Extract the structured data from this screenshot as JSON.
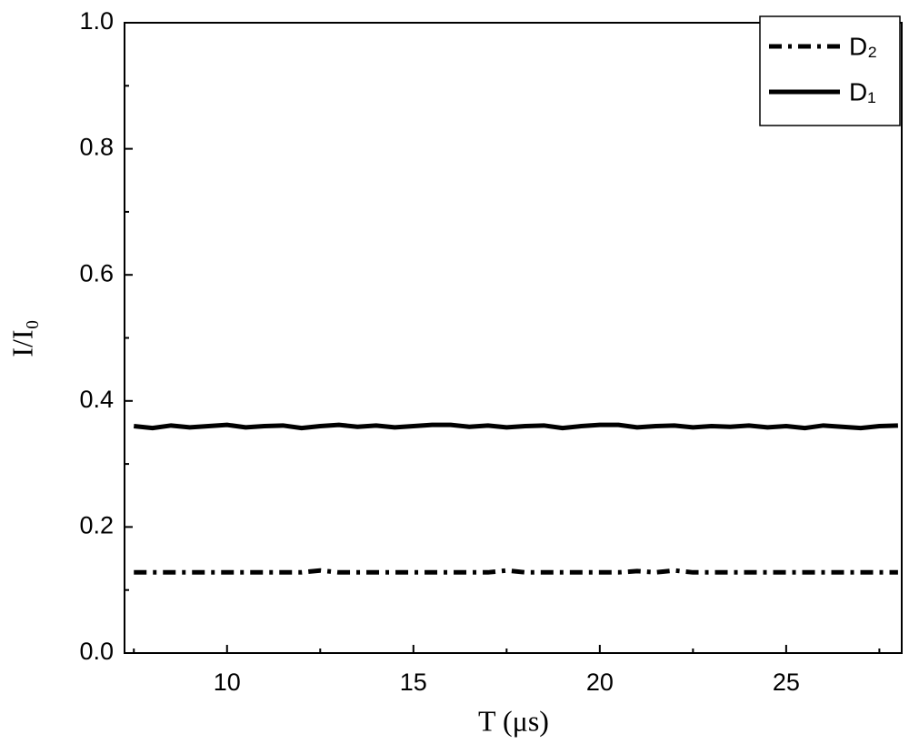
{
  "chart_data": {
    "type": "line",
    "xlabel": "T (μs)",
    "ylabel": "I/I₀",
    "x": [
      7.5,
      8,
      8.5,
      9,
      9.5,
      10,
      10.5,
      11,
      11.5,
      12,
      12.5,
      13,
      13.5,
      14,
      14.5,
      15,
      15.5,
      16,
      16.5,
      17,
      17.5,
      18,
      18.5,
      19,
      19.5,
      20,
      20.5,
      21,
      21.5,
      22,
      22.5,
      23,
      23.5,
      24,
      24.5,
      25,
      25.5,
      26,
      26.5,
      27,
      27.5,
      28
    ],
    "series": [
      {
        "name": "D₂",
        "color": "#000000",
        "style": "dashdot",
        "values": [
          0.128,
          0.128,
          0.128,
          0.128,
          0.128,
          0.128,
          0.128,
          0.128,
          0.128,
          0.128,
          0.131,
          0.128,
          0.128,
          0.128,
          0.128,
          0.128,
          0.128,
          0.128,
          0.128,
          0.128,
          0.131,
          0.128,
          0.128,
          0.128,
          0.128,
          0.128,
          0.128,
          0.13,
          0.128,
          0.131,
          0.128,
          0.128,
          0.128,
          0.128,
          0.128,
          0.128,
          0.128,
          0.128,
          0.128,
          0.128,
          0.128,
          0.128
        ]
      },
      {
        "name": "D₁",
        "color": "#000000",
        "style": "solid",
        "values": [
          0.36,
          0.357,
          0.361,
          0.358,
          0.36,
          0.362,
          0.358,
          0.36,
          0.361,
          0.357,
          0.36,
          0.362,
          0.359,
          0.361,
          0.358,
          0.36,
          0.362,
          0.362,
          0.359,
          0.361,
          0.358,
          0.36,
          0.361,
          0.357,
          0.36,
          0.362,
          0.362,
          0.358,
          0.36,
          0.361,
          0.358,
          0.36,
          0.359,
          0.361,
          0.358,
          0.36,
          0.357,
          0.361,
          0.359,
          0.357,
          0.36,
          0.361
        ]
      }
    ],
    "xlim": [
      7.25,
      28.1
    ],
    "xticks": [
      10,
      15,
      20,
      25
    ],
    "ylim": [
      0,
      1
    ],
    "yticks": [
      {
        "value": 0,
        "label": "0.0"
      },
      0.2,
      0.4,
      0.6,
      0.8,
      {
        "value": 1,
        "label": "1.0"
      }
    ],
    "legend": "upper right",
    "grid": false
  }
}
